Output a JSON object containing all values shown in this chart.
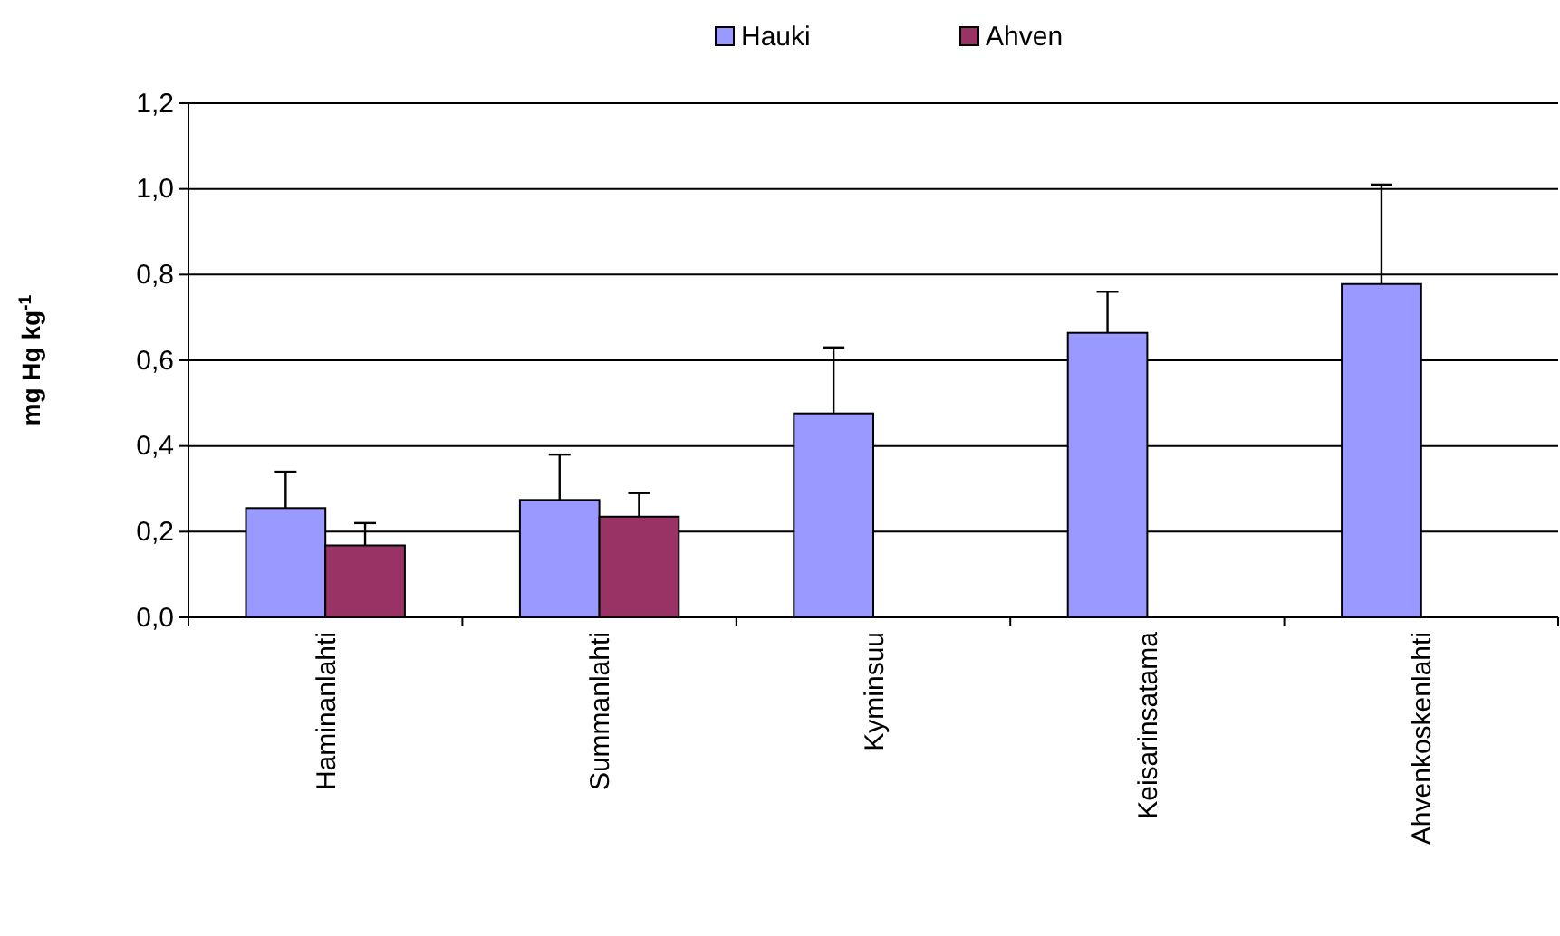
{
  "chart_data": {
    "type": "bar",
    "ylabel": "mg Hg kg$^{-1}$",
    "categories": [
      "Haminanlahti",
      "Summanlahti",
      "Kyminsuu",
      "Keisarinsatama",
      "Ahvenkoskenlahti"
    ],
    "series": [
      {
        "name": "Hauki",
        "color": "#9999ff",
        "values": [
          0.255,
          0.274,
          0.476,
          0.664,
          0.778
        ],
        "errors": [
          [
            0.255,
            0.34
          ],
          [
            0.274,
            0.38
          ],
          [
            0.476,
            0.63
          ],
          [
            0.664,
            0.76
          ],
          [
            0.778,
            1.01
          ]
        ]
      },
      {
        "name": "Ahven",
        "color": "#993366",
        "values": [
          0.168,
          0.235,
          null,
          null,
          null
        ],
        "errors": [
          [
            0.168,
            0.22
          ],
          [
            0.235,
            0.29
          ],
          null,
          null,
          null
        ]
      }
    ],
    "ylim": [
      0,
      1.2
    ],
    "yticks": [
      {
        "value": 0,
        "label": "0,0"
      },
      {
        "value": 0.2,
        "label": "0,2"
      },
      {
        "value": 0.4,
        "label": "0,4"
      },
      {
        "value": 0.6,
        "label": "0,6"
      },
      {
        "value": 0.8,
        "label": "0,8"
      },
      {
        "value": 1.0,
        "label": "1,0"
      },
      {
        "value": 1.2,
        "label": "1,2"
      }
    ],
    "grid": "y",
    "legend": "top"
  }
}
